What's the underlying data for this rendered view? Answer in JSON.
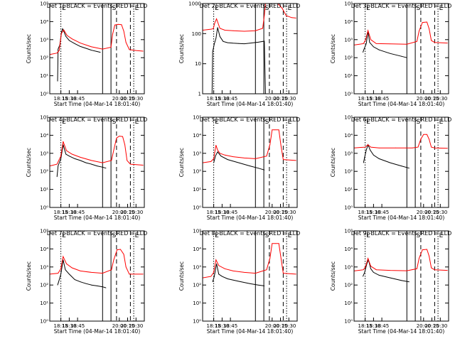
{
  "figure": {
    "background": "#ffffff",
    "colors": {
      "events": "#000000",
      "lld": "#ff0000",
      "axes": "#000000"
    },
    "time_axis": {
      "ticks": [
        "18:15",
        "18:30",
        "18:45",
        "20:00",
        "20:15",
        "20:30"
      ],
      "tick_minutes": [
        1095,
        1110,
        1125,
        1200,
        1215,
        1230
      ],
      "range_minutes": [
        1075,
        1245
      ],
      "title": "Start Time (04-Mar-14 18:01:40)"
    },
    "markers": [
      {
        "minute": 1095,
        "style": "dotted",
        "letter": "E"
      },
      {
        "minute": 1170,
        "style": "solid",
        "letter": ""
      },
      {
        "minute": 1185,
        "style": "solid",
        "letter": "S"
      },
      {
        "minute": 1195,
        "style": "dashed",
        "letter": ""
      },
      {
        "minute": 1220,
        "style": "dashed",
        "letter": ""
      },
      {
        "minute": 1226,
        "style": "dotted",
        "letter": "E"
      }
    ]
  },
  "chart_data": [
    {
      "type": "line",
      "title": "Det 1(-BLACK = Events, RED = LLD",
      "ylabel": "Counts/sec",
      "log": true,
      "ylim": [
        1,
        100000
      ],
      "yticks": [
        1,
        10,
        100,
        1000,
        10000,
        100000
      ],
      "ytick_labels": [
        "10⁰",
        "10¹",
        "10²",
        "10³",
        "10⁴",
        "10⁵"
      ],
      "series": [
        {
          "color": "#000000",
          "x": [
            1089,
            1090,
            1093,
            1096,
            1098,
            1100,
            1104,
            1110,
            1120,
            1130,
            1140,
            1150,
            1160,
            1166
          ],
          "y": [
            5,
            300,
            500,
            2500,
            4000,
            3000,
            1500,
            900,
            600,
            420,
            330,
            260,
            220,
            200
          ]
        },
        {
          "color": "#ff0000",
          "x": [
            1075,
            1088,
            1092,
            1096,
            1100,
            1106,
            1115,
            1130,
            1150,
            1170,
            1185,
            1188,
            1192,
            1198,
            1204,
            1208,
            1212,
            1218,
            1230,
            1243
          ],
          "y": [
            150,
            180,
            250,
            2200,
            3500,
            1700,
            1100,
            650,
            400,
            300,
            380,
            2000,
            6500,
            7000,
            6800,
            3000,
            700,
            280,
            250,
            230
          ]
        }
      ]
    },
    {
      "type": "line",
      "title": "Det 2(-BLACK = Events, RED = LLD",
      "ylabel": "Counts/sec",
      "log": true,
      "ylim": [
        1,
        1000
      ],
      "yticks": [
        1,
        10,
        100,
        1000
      ],
      "ytick_labels": [
        "1",
        "10",
        "100",
        "1000"
      ],
      "series": [
        {
          "color": "#000000",
          "x": [
            1092,
            1093,
            1096,
            1099,
            1102,
            1106,
            1112,
            1120,
            1130,
            1140,
            1150,
            1160,
            1175,
            1186,
            1188
          ],
          "y": [
            1,
            25,
            45,
            70,
            160,
            80,
            55,
            50,
            48,
            47,
            46,
            48,
            52,
            56,
            1
          ]
        },
        {
          "color": "#ff0000",
          "x": [
            1075,
            1090,
            1094,
            1097,
            1100,
            1106,
            1115,
            1130,
            1150,
            1170,
            1183,
            1186,
            1188,
            1190,
            1200,
            1210,
            1218,
            1225,
            1235,
            1243
          ],
          "y": [
            130,
            140,
            145,
            230,
            310,
            150,
            130,
            125,
            120,
            125,
            150,
            400,
            1000,
            1000,
            1000,
            1000,
            700,
            400,
            340,
            330
          ]
        }
      ]
    },
    {
      "type": "line",
      "title": "Det 3(-BLACK = Events, RED = LLD",
      "ylabel": "Counts/sec",
      "log": true,
      "ylim": [
        1,
        100000
      ],
      "yticks": [
        1,
        10,
        100,
        1000,
        10000,
        100000
      ],
      "ytick_labels": [
        "10⁰",
        "10¹",
        "10²",
        "10³",
        "10⁴",
        "10⁵"
      ],
      "series": [
        {
          "color": "#000000",
          "x": [
            1091,
            1093,
            1097,
            1100,
            1103,
            1110,
            1120,
            1140,
            1160,
            1170
          ],
          "y": [
            200,
            300,
            600,
            3000,
            700,
            400,
            270,
            170,
            120,
            100
          ]
        },
        {
          "color": "#ff0000",
          "x": [
            1075,
            1092,
            1096,
            1100,
            1105,
            1115,
            1140,
            1170,
            1188,
            1192,
            1198,
            1206,
            1210,
            1214,
            1220,
            1243
          ],
          "y": [
            500,
            600,
            1000,
            3200,
            1000,
            600,
            580,
            560,
            800,
            3000,
            9000,
            9500,
            4000,
            900,
            700,
            650
          ]
        }
      ]
    },
    {
      "type": "line",
      "title": "Det 4(-BLACK = Events, RED = LLD",
      "ylabel": "Counts/sec",
      "log": true,
      "ylim": [
        1,
        100000
      ],
      "yticks": [
        1,
        10,
        100,
        1000,
        10000,
        100000
      ],
      "ytick_labels": [
        "10⁰",
        "10¹",
        "10²",
        "10³",
        "10⁴",
        "10⁵"
      ],
      "series": [
        {
          "color": "#000000",
          "x": [
            1088,
            1090,
            1095,
            1099,
            1104,
            1110,
            1120,
            1130,
            1140,
            1150,
            1160,
            1170,
            1176
          ],
          "y": [
            50,
            200,
            500,
            3000,
            900,
            700,
            500,
            400,
            300,
            250,
            200,
            170,
            150
          ]
        },
        {
          "color": "#ff0000",
          "x": [
            1075,
            1088,
            1095,
            1099,
            1105,
            1115,
            1130,
            1150,
            1170,
            1186,
            1190,
            1195,
            1200,
            1206,
            1210,
            1214,
            1220,
            1243
          ],
          "y": [
            200,
            250,
            700,
            4500,
            1400,
            900,
            600,
            400,
            300,
            400,
            1500,
            7000,
            9000,
            8500,
            3000,
            400,
            250,
            220
          ]
        }
      ]
    },
    {
      "type": "line",
      "title": "Det 5(-BLACK = Events, RED = LLD",
      "ylabel": "Counts/sec",
      "log": true,
      "ylim": [
        1,
        100000
      ],
      "yticks": [
        1,
        10,
        100,
        1000,
        10000,
        100000
      ],
      "ytick_labels": [
        "10⁰",
        "10¹",
        "10²",
        "10³",
        "10⁴",
        "10⁵"
      ],
      "series": [
        {
          "color": "#000000",
          "x": [
            1095,
            1098,
            1102,
            1108,
            1120,
            1140,
            1160,
            1175,
            1182,
            1186
          ],
          "y": [
            300,
            700,
            1200,
            700,
            450,
            300,
            200,
            150,
            130,
            120
          ]
        },
        {
          "color": "#ff0000",
          "x": [
            1075,
            1090,
            1095,
            1099,
            1102,
            1106,
            1115,
            1130,
            1150,
            1170,
            1190,
            1196,
            1200,
            1205,
            1212,
            1216,
            1220,
            1243
          ],
          "y": [
            300,
            350,
            500,
            2800,
            1500,
            1000,
            800,
            650,
            550,
            500,
            700,
            3000,
            20000,
            20000,
            20000,
            2500,
            450,
            400
          ]
        }
      ]
    },
    {
      "type": "line",
      "title": "Det 6(-BLACK = Events, RED = LLD",
      "ylabel": "Counts/sec",
      "log": true,
      "ylim": [
        1,
        100000
      ],
      "yticks": [
        1,
        10,
        100,
        1000,
        10000,
        100000
      ],
      "ytick_labels": [
        "10⁰",
        "10¹",
        "10²",
        "10³",
        "10⁴",
        "10⁵"
      ],
      "series": [
        {
          "color": "#000000",
          "x": [
            1092,
            1094,
            1097,
            1100,
            1104,
            1110,
            1120,
            1140,
            1160,
            1174
          ],
          "y": [
            300,
            600,
            1500,
            3000,
            1500,
            800,
            500,
            300,
            200,
            150
          ]
        },
        {
          "color": "#ff0000",
          "x": [
            1075,
            1095,
            1100,
            1105,
            1120,
            1150,
            1180,
            1190,
            1195,
            1200,
            1206,
            1210,
            1214,
            1220,
            1243
          ],
          "y": [
            2000,
            2200,
            3000,
            2200,
            2000,
            2000,
            2000,
            2200,
            6000,
            11000,
            11000,
            6000,
            2200,
            2000,
            1900
          ]
        }
      ]
    },
    {
      "type": "line",
      "title": "Det 7(-BLACK = Events, RED = LLD",
      "ylabel": "Counts/sec",
      "log": true,
      "ylim": [
        1,
        100000
      ],
      "yticks": [
        1,
        10,
        100,
        1000,
        10000,
        100000
      ],
      "ytick_labels": [
        "10⁰",
        "10¹",
        "10²",
        "10³",
        "10⁴",
        "10⁵"
      ],
      "series": [
        {
          "color": "#000000",
          "x": [
            1089,
            1091,
            1095,
            1099,
            1103,
            1110,
            1120,
            1130,
            1140,
            1150,
            1160,
            1170,
            1176
          ],
          "y": [
            100,
            150,
            400,
            2500,
            700,
            400,
            200,
            150,
            120,
            100,
            90,
            80,
            70
          ]
        },
        {
          "color": "#ff0000",
          "x": [
            1075,
            1090,
            1095,
            1099,
            1105,
            1115,
            1130,
            1150,
            1170,
            1186,
            1190,
            1196,
            1202,
            1208,
            1212,
            1218,
            1243
          ],
          "y": [
            400,
            450,
            800,
            3800,
            1500,
            900,
            600,
            500,
            450,
            700,
            2500,
            9000,
            9500,
            5000,
            1000,
            400,
            400
          ]
        }
      ]
    },
    {
      "type": "line",
      "title": "Det 8(-BLACK = Events, RED = LLD",
      "ylabel": "Counts/sec",
      "log": true,
      "ylim": [
        1,
        100000
      ],
      "yticks": [
        1,
        10,
        100,
        1000,
        10000,
        100000
      ],
      "ytick_labels": [
        "10⁰",
        "10¹",
        "10²",
        "10³",
        "10⁴",
        "10⁵"
      ],
      "series": [
        {
          "color": "#000000",
          "x": [
            1093,
            1096,
            1100,
            1104,
            1110,
            1120,
            1140,
            1160,
            1175,
            1186
          ],
          "y": [
            150,
            300,
            1500,
            400,
            300,
            220,
            160,
            120,
            100,
            90
          ]
        },
        {
          "color": "#ff0000",
          "x": [
            1075,
            1090,
            1095,
            1099,
            1104,
            1115,
            1130,
            1150,
            1170,
            1190,
            1196,
            1200,
            1206,
            1212,
            1216,
            1220,
            1243
          ],
          "y": [
            250,
            300,
            500,
            2500,
            1200,
            800,
            600,
            500,
            450,
            700,
            3000,
            20000,
            20000,
            20000,
            3000,
            450,
            400
          ]
        }
      ]
    },
    {
      "type": "line",
      "title": "Det 9(-BLACK = Events, RED = LLD",
      "ylabel": "Counts/sec",
      "log": true,
      "ylim": [
        1,
        100000
      ],
      "yticks": [
        1,
        10,
        100,
        1000,
        10000,
        100000
      ],
      "ytick_labels": [
        "10⁰",
        "10¹",
        "10²",
        "10³",
        "10⁴",
        "10⁵"
      ],
      "series": [
        {
          "color": "#000000",
          "x": [
            1091,
            1094,
            1098,
            1101,
            1105,
            1110,
            1120,
            1140,
            1160,
            1174
          ],
          "y": [
            300,
            500,
            1500,
            2500,
            800,
            500,
            350,
            250,
            180,
            150
          ]
        },
        {
          "color": "#ff0000",
          "x": [
            1075,
            1092,
            1096,
            1100,
            1105,
            1115,
            1140,
            1170,
            1188,
            1192,
            1198,
            1206,
            1210,
            1214,
            1220,
            1243
          ],
          "y": [
            600,
            700,
            1100,
            3000,
            1100,
            700,
            650,
            620,
            800,
            3000,
            9000,
            9500,
            4000,
            900,
            700,
            650
          ]
        }
      ]
    }
  ]
}
